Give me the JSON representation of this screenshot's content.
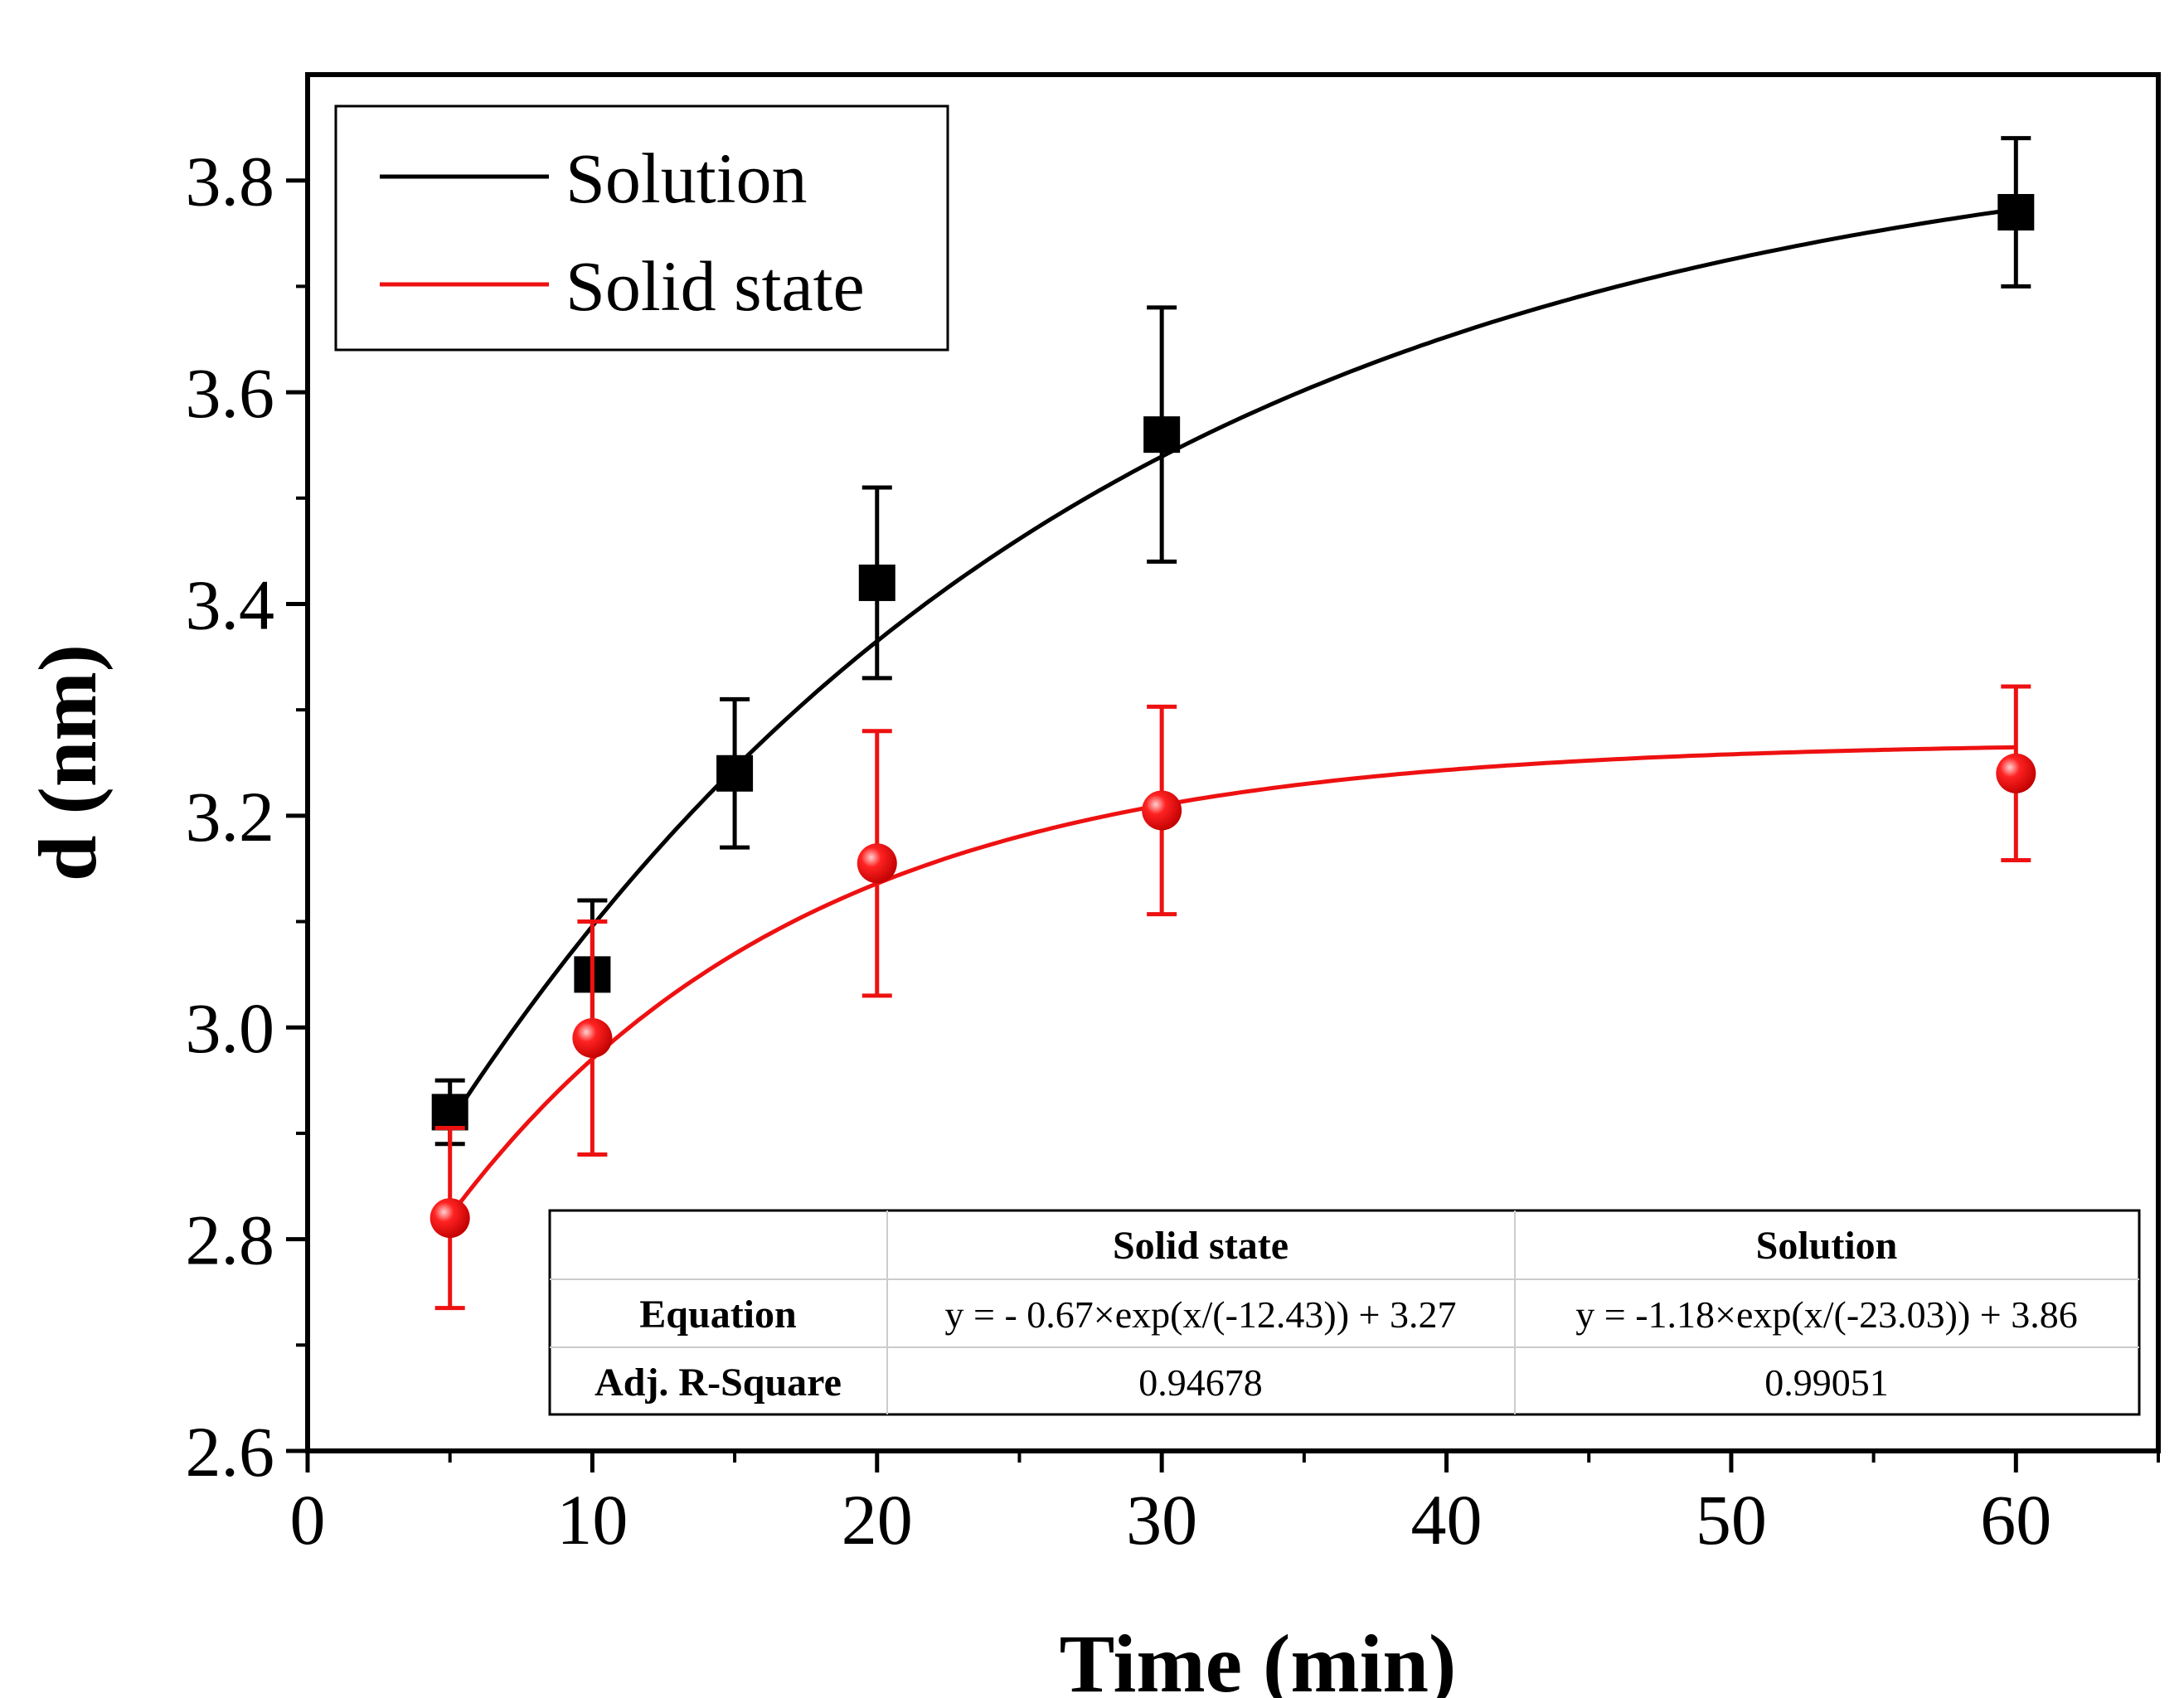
{
  "chart_data": {
    "type": "scatter",
    "title": "",
    "xlabel": "Time (min)",
    "ylabel": "d (nm)",
    "xlim": [
      0,
      65
    ],
    "ylim": [
      2.6,
      3.9
    ],
    "x_ticks": [
      0,
      10,
      20,
      30,
      40,
      50,
      60
    ],
    "x_tick_labels": [
      "0",
      "10",
      "20",
      "30",
      "40",
      "50",
      "60"
    ],
    "y_ticks": [
      2.6,
      2.8,
      3.0,
      3.2,
      3.4,
      3.6,
      3.8
    ],
    "y_tick_labels": [
      "2.6",
      "2.8",
      "3.0",
      "3.2",
      "3.4",
      "3.6",
      "3.8"
    ],
    "grid": false,
    "legend_position": "top-left",
    "series": [
      {
        "name": "Solution",
        "color": "#000000",
        "marker": "square",
        "x": [
          5,
          10,
          15,
          20,
          30,
          60
        ],
        "values": [
          2.92,
          3.05,
          3.24,
          3.42,
          3.56,
          3.77
        ],
        "error": [
          0.03,
          0.07,
          0.07,
          0.09,
          0.12,
          0.07
        ],
        "fit": {
          "A": -1.18,
          "t": 23.03,
          "y0": 3.86
        }
      },
      {
        "name": "Solid state",
        "color": "#ee1111",
        "marker": "circle",
        "x": [
          5,
          10,
          20,
          30,
          60
        ],
        "values": [
          2.82,
          2.99,
          3.155,
          3.205,
          3.24
        ],
        "error": [
          0.085,
          0.11,
          0.125,
          0.098,
          0.082
        ],
        "fit": {
          "A": -0.67,
          "t": 12.43,
          "y0": 3.27
        }
      }
    ],
    "table": {
      "headers": [
        "",
        "Solid state",
        "Solution"
      ],
      "rows": [
        [
          "Equation",
          "y = - 0.67×exp(x/(-12.43)) + 3.27",
          "y = -1.18×exp(x/(-23.03)) + 3.86"
        ],
        [
          "Adj. R-Square",
          "0.94678",
          "0.99051"
        ]
      ]
    }
  }
}
